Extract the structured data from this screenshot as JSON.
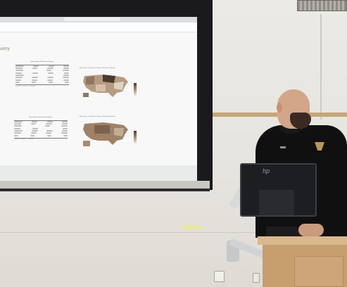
{
  "slide": {
    "heading": "ustry",
    "table1_title": "Mean Hours of Full-Time Workers",
    "table2_title": "Mean Hours of Part-Time Workers",
    "table_note1": "* p<0.05, ** p<0.01, *** p<0.001",
    "table_note2": "* p<0.05, ** p<0.01, *** p<0.001",
    "map1_title": "Mean Hours Worked Per Week of Full-Time Workers",
    "map2_title": "Mean Hours Worked Per Week of Part-Time Workers"
  },
  "monitor": {
    "brand": "hp"
  },
  "colors": {
    "map_dark": "#4a3b2e",
    "map_mid": "#a88b6f",
    "map_light": "#efe7de",
    "podium_wood": "#c79f6f",
    "shirt_logo": "#b89a55"
  }
}
